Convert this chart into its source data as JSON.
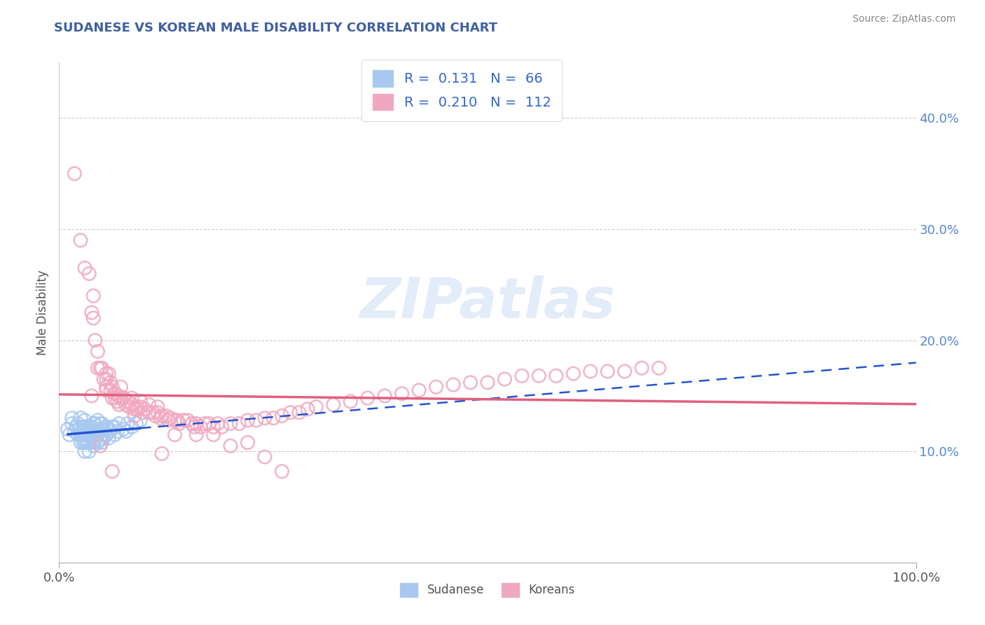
{
  "title": "SUDANESE VS KOREAN MALE DISABILITY CORRELATION CHART",
  "source": "Source: ZipAtlas.com",
  "ylabel": "Male Disability",
  "watermark": "ZIPatlas",
  "legend_r1": "R =  0.131   N =  66",
  "legend_r2": "R =  0.210   N =  112",
  "sudanese_R": 0.131,
  "sudanese_N": 66,
  "korean_R": 0.21,
  "korean_N": 112,
  "sudanese_color": "#a8c8f0",
  "korean_color": "#f0a8c0",
  "sudanese_line_color": "#2255cc",
  "korean_line_color": "#e06080",
  "grid_color": "#cccccc",
  "title_color": "#4060a0",
  "legend_text_color": "#3366cc",
  "sudanese_points_x": [
    0.01,
    0.012,
    0.015,
    0.015,
    0.018,
    0.02,
    0.022,
    0.022,
    0.025,
    0.025,
    0.025,
    0.025,
    0.028,
    0.028,
    0.028,
    0.03,
    0.03,
    0.03,
    0.03,
    0.03,
    0.03,
    0.032,
    0.032,
    0.032,
    0.035,
    0.035,
    0.035,
    0.035,
    0.038,
    0.038,
    0.038,
    0.04,
    0.04,
    0.04,
    0.04,
    0.042,
    0.042,
    0.042,
    0.045,
    0.045,
    0.045,
    0.045,
    0.048,
    0.048,
    0.048,
    0.05,
    0.05,
    0.05,
    0.052,
    0.052,
    0.055,
    0.055,
    0.058,
    0.058,
    0.06,
    0.062,
    0.065,
    0.065,
    0.068,
    0.07,
    0.075,
    0.078,
    0.08,
    0.085,
    0.09,
    0.095
  ],
  "sudanese_points_y": [
    0.12,
    0.115,
    0.125,
    0.13,
    0.118,
    0.122,
    0.115,
    0.125,
    0.108,
    0.115,
    0.122,
    0.13,
    0.108,
    0.115,
    0.122,
    0.1,
    0.108,
    0.112,
    0.118,
    0.122,
    0.128,
    0.108,
    0.115,
    0.122,
    0.1,
    0.108,
    0.115,
    0.122,
    0.108,
    0.115,
    0.122,
    0.105,
    0.112,
    0.118,
    0.125,
    0.11,
    0.118,
    0.125,
    0.108,
    0.115,
    0.12,
    0.128,
    0.11,
    0.118,
    0.125,
    0.108,
    0.115,
    0.125,
    0.112,
    0.12,
    0.115,
    0.122,
    0.112,
    0.12,
    0.118,
    0.122,
    0.115,
    0.122,
    0.118,
    0.125,
    0.12,
    0.118,
    0.125,
    0.122,
    0.125,
    0.128
  ],
  "korean_points_x": [
    0.018,
    0.025,
    0.03,
    0.035,
    0.038,
    0.04,
    0.04,
    0.042,
    0.045,
    0.045,
    0.048,
    0.05,
    0.052,
    0.055,
    0.055,
    0.058,
    0.06,
    0.06,
    0.062,
    0.062,
    0.065,
    0.065,
    0.068,
    0.07,
    0.07,
    0.072,
    0.075,
    0.078,
    0.08,
    0.082,
    0.085,
    0.088,
    0.09,
    0.092,
    0.095,
    0.098,
    0.1,
    0.105,
    0.11,
    0.112,
    0.115,
    0.118,
    0.12,
    0.125,
    0.128,
    0.13,
    0.135,
    0.138,
    0.14,
    0.145,
    0.15,
    0.155,
    0.158,
    0.16,
    0.165,
    0.17,
    0.175,
    0.18,
    0.185,
    0.19,
    0.2,
    0.21,
    0.22,
    0.23,
    0.24,
    0.25,
    0.26,
    0.27,
    0.28,
    0.29,
    0.3,
    0.32,
    0.34,
    0.36,
    0.38,
    0.4,
    0.42,
    0.44,
    0.46,
    0.48,
    0.5,
    0.52,
    0.54,
    0.56,
    0.58,
    0.6,
    0.62,
    0.64,
    0.66,
    0.68,
    0.7,
    0.055,
    0.065,
    0.075,
    0.085,
    0.095,
    0.105,
    0.115,
    0.055,
    0.062,
    0.048,
    0.038,
    0.072,
    0.088,
    0.12,
    0.135,
    0.16,
    0.18,
    0.2,
    0.22,
    0.24,
    0.26
  ],
  "korean_points_y": [
    0.35,
    0.29,
    0.265,
    0.26,
    0.225,
    0.24,
    0.22,
    0.2,
    0.19,
    0.175,
    0.175,
    0.175,
    0.165,
    0.165,
    0.158,
    0.17,
    0.162,
    0.155,
    0.158,
    0.148,
    0.152,
    0.148,
    0.145,
    0.15,
    0.142,
    0.148,
    0.148,
    0.142,
    0.145,
    0.14,
    0.142,
    0.138,
    0.14,
    0.138,
    0.14,
    0.135,
    0.138,
    0.135,
    0.135,
    0.132,
    0.135,
    0.13,
    0.132,
    0.132,
    0.128,
    0.13,
    0.128,
    0.128,
    0.125,
    0.128,
    0.128,
    0.125,
    0.122,
    0.125,
    0.122,
    0.125,
    0.125,
    0.122,
    0.125,
    0.122,
    0.125,
    0.125,
    0.128,
    0.128,
    0.13,
    0.13,
    0.132,
    0.135,
    0.135,
    0.138,
    0.14,
    0.142,
    0.145,
    0.148,
    0.15,
    0.152,
    0.155,
    0.158,
    0.16,
    0.162,
    0.162,
    0.165,
    0.168,
    0.168,
    0.168,
    0.17,
    0.172,
    0.172,
    0.172,
    0.175,
    0.175,
    0.155,
    0.152,
    0.148,
    0.148,
    0.145,
    0.142,
    0.14,
    0.17,
    0.082,
    0.105,
    0.15,
    0.158,
    0.132,
    0.098,
    0.115,
    0.115,
    0.115,
    0.105,
    0.108,
    0.095,
    0.082
  ],
  "xlim": [
    0.0,
    1.0
  ],
  "ylim": [
    0.0,
    0.45
  ],
  "yticks": [
    0.1,
    0.2,
    0.3,
    0.4
  ],
  "ytick_labels": [
    "10.0%",
    "20.0%",
    "30.0%",
    "40.0%"
  ],
  "xticks": [
    0.0,
    1.0
  ],
  "xtick_labels": [
    "0.0%",
    "100.0%"
  ],
  "grid_yticks": [
    0.1,
    0.2,
    0.3,
    0.4
  ],
  "background_color": "#ffffff"
}
